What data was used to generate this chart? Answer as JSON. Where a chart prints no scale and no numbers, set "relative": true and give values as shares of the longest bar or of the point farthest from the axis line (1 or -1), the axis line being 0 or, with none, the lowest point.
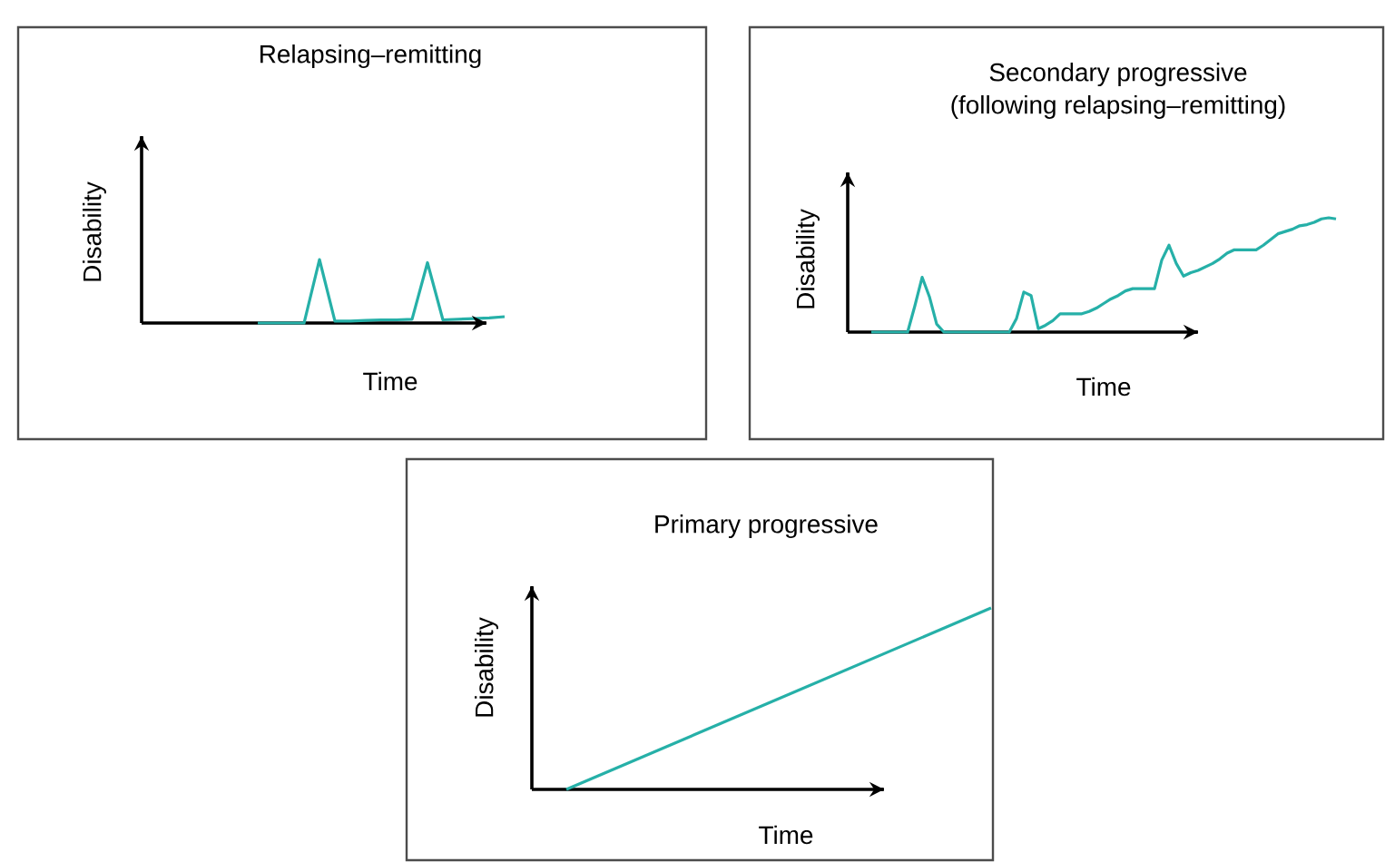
{
  "chart_data": [
    {
      "type": "line",
      "title": "Relapsing–remitting",
      "xlabel": "Time",
      "ylabel": "Disability",
      "relative": true,
      "color": "#26b0a8",
      "categories": [
        null,
        null,
        null,
        null,
        null,
        null,
        null,
        null,
        null,
        null,
        null,
        null,
        null,
        null,
        null,
        null,
        null
      ],
      "values": [
        0,
        0,
        0,
        0,
        1,
        0.03,
        0.03,
        0.04,
        0.05,
        0.05,
        0.06,
        0.95,
        0.05,
        0.06,
        0.07,
        0.08,
        0.1
      ]
    },
    {
      "type": "line",
      "title": "Secondary progressive",
      "subtitle": "(following relapsing–remitting)",
      "xlabel": "Time",
      "ylabel": "Disability",
      "relative": true,
      "color": "#26b0a8",
      "categories": [
        null,
        null,
        null,
        null,
        null,
        null,
        null,
        null,
        null,
        null,
        null,
        null,
        null,
        null,
        null,
        null,
        null,
        null,
        null,
        null,
        null,
        null,
        null,
        null,
        null,
        null,
        null,
        null,
        null,
        null,
        null,
        null,
        null,
        null,
        null,
        null,
        null,
        null,
        null,
        null,
        null,
        null,
        null,
        null,
        null,
        null,
        null,
        null,
        null,
        null,
        null,
        null,
        null,
        null,
        null,
        null,
        null,
        null,
        null,
        null,
        null,
        null,
        null,
        null,
        null
      ],
      "values": [
        0,
        0,
        0,
        0,
        0,
        0,
        0.23,
        0.48,
        0.31,
        0.07,
        0,
        0,
        0,
        0,
        0,
        0,
        0,
        0,
        0,
        0,
        0.12,
        0.35,
        0.32,
        0.03,
        0.06,
        0.1,
        0.16,
        0.16,
        0.16,
        0.16,
        0.18,
        0.21,
        0.25,
        0.29,
        0.32,
        0.36,
        0.38,
        0.38,
        0.38,
        0.38,
        0.63,
        0.76,
        0.6,
        0.49,
        0.52,
        0.54,
        0.57,
        0.6,
        0.64,
        0.69,
        0.72,
        0.72,
        0.72,
        0.72,
        0.76,
        0.81,
        0.86,
        0.88,
        0.9,
        0.93,
        0.94,
        0.96,
        0.99,
        1,
        0.99
      ]
    },
    {
      "type": "line",
      "title": "Primary progressive",
      "xlabel": "Time",
      "ylabel": "Disability",
      "relative": true,
      "color": "#26b0a8",
      "categories": [
        null,
        null
      ],
      "values": [
        0,
        1
      ]
    }
  ]
}
